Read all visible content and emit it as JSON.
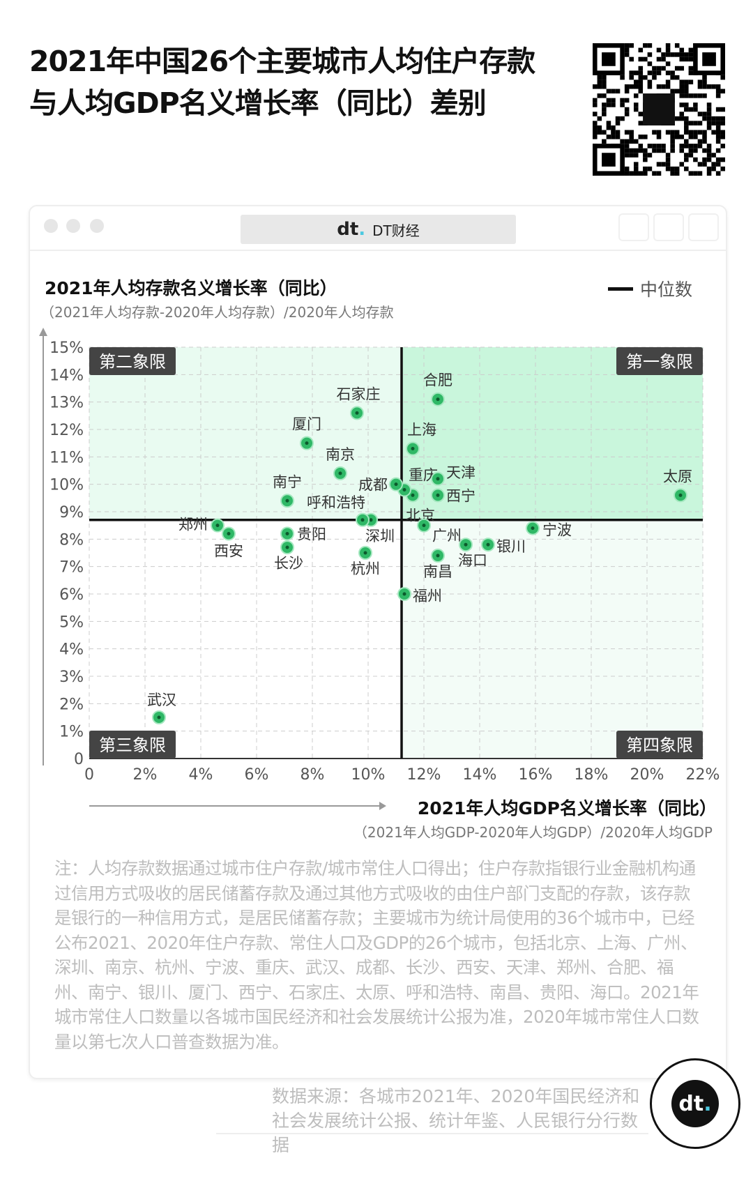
{
  "header": {
    "title_line1": "2021年中国26个主要城市人均住户存款",
    "title_line2": "与人均GDP名义增长率（同比）差别"
  },
  "window": {
    "address_label": "DT财经",
    "brand": "dt"
  },
  "chart_data": {
    "type": "scatter",
    "ylabel": "2021年人均存款名义增长率（同比）",
    "ylabel_sub": "（2021年人均存款-2020年人均存款）/2020年人均存款",
    "xlabel": "2021年人均GDP名义增长率（同比）",
    "xlabel_sub": "（2021年人均GDP-2020年人均GDP）/2020年人均GDP",
    "legend": "中位数",
    "legend_placement": "top-right",
    "xlim": [
      0,
      22
    ],
    "ylim": [
      0,
      15
    ],
    "x_ticks": [
      "0",
      "2%",
      "4%",
      "6%",
      "8%",
      "10%",
      "12%",
      "14%",
      "16%",
      "18%",
      "20%",
      "22%"
    ],
    "y_ticks": [
      "0",
      "1%",
      "2%",
      "3%",
      "4%",
      "5%",
      "6%",
      "7%",
      "8%",
      "9%",
      "10%",
      "11%",
      "12%",
      "13%",
      "14%",
      "15%"
    ],
    "grid": true,
    "median": {
      "x": 11.2,
      "y": 8.7
    },
    "quadrants": {
      "q1": "第一象限",
      "q2": "第二象限",
      "q3": "第三象限",
      "q4": "第四象限"
    },
    "colors": {
      "point": "#2fb866",
      "q1_fill": "#c9f6dc",
      "q2_fill": "#e9fbf1",
      "q4_fill": "#f3fcf7",
      "quadrant_label_bg": "#444444",
      "median_line": "#111111"
    },
    "points": [
      {
        "city": "北京",
        "x": 11.6,
        "y": 9.6
      },
      {
        "city": "上海",
        "x": 11.6,
        "y": 11.3
      },
      {
        "city": "广州",
        "x": 12.0,
        "y": 8.5
      },
      {
        "city": "深圳",
        "x": 10.1,
        "y": 8.7
      },
      {
        "city": "南京",
        "x": 9.0,
        "y": 10.4
      },
      {
        "city": "杭州",
        "x": 9.9,
        "y": 7.5
      },
      {
        "city": "宁波",
        "x": 15.9,
        "y": 8.4
      },
      {
        "city": "重庆",
        "x": 11.3,
        "y": 9.8
      },
      {
        "city": "武汉",
        "x": 2.5,
        "y": 1.5
      },
      {
        "city": "成都",
        "x": 11.0,
        "y": 10.0
      },
      {
        "city": "长沙",
        "x": 7.1,
        "y": 7.7
      },
      {
        "city": "西安",
        "x": 5.0,
        "y": 8.2
      },
      {
        "city": "天津",
        "x": 12.5,
        "y": 10.2
      },
      {
        "city": "郑州",
        "x": 4.6,
        "y": 8.5
      },
      {
        "city": "合肥",
        "x": 12.5,
        "y": 13.1
      },
      {
        "city": "福州",
        "x": 11.3,
        "y": 6.0
      },
      {
        "city": "南宁",
        "x": 7.1,
        "y": 9.4
      },
      {
        "city": "银川",
        "x": 14.3,
        "y": 7.8
      },
      {
        "city": "厦门",
        "x": 7.8,
        "y": 11.5
      },
      {
        "city": "西宁",
        "x": 12.5,
        "y": 9.6
      },
      {
        "city": "石家庄",
        "x": 9.6,
        "y": 12.6
      },
      {
        "city": "太原",
        "x": 21.2,
        "y": 9.6
      },
      {
        "city": "呼和浩特",
        "x": 9.8,
        "y": 8.7
      },
      {
        "city": "南昌",
        "x": 12.5,
        "y": 7.4
      },
      {
        "city": "贵阳",
        "x": 7.1,
        "y": 8.2
      },
      {
        "city": "海口",
        "x": 13.5,
        "y": 7.8
      }
    ]
  },
  "footer": {
    "note": "注：人均存款数据通过城市住户存款/城市常住人口得出；住户存款指银行业金融机构通过信用方式吸收的居民储蓄存款及通过其他方式吸收的由住户部门支配的存款，该存款是银行的一种信用方式，是居民储蓄存款；主要城市为统计局使用的36个城市中，已经公布2021、2020年住户存款、常住人口及GDP的26个城市，包括北京、上海、广州、深圳、南京、杭州、宁波、重庆、武汉、成都、长沙、西安、天津、郑州、合肥、福州、南宁、银川、厦门、西宁、石家庄、太原、呼和浩特、南昌、贵阳、海口。2021年城市常住人口数量以各城市国民经济和社会发展统计公报为准，2020年城市常住人口数量以第七次人口普查数据为准。",
    "source": "数据来源：各城市2021年、2020年国民经济和社会发展统计公报、统计年鉴、人民银行分行数据"
  }
}
